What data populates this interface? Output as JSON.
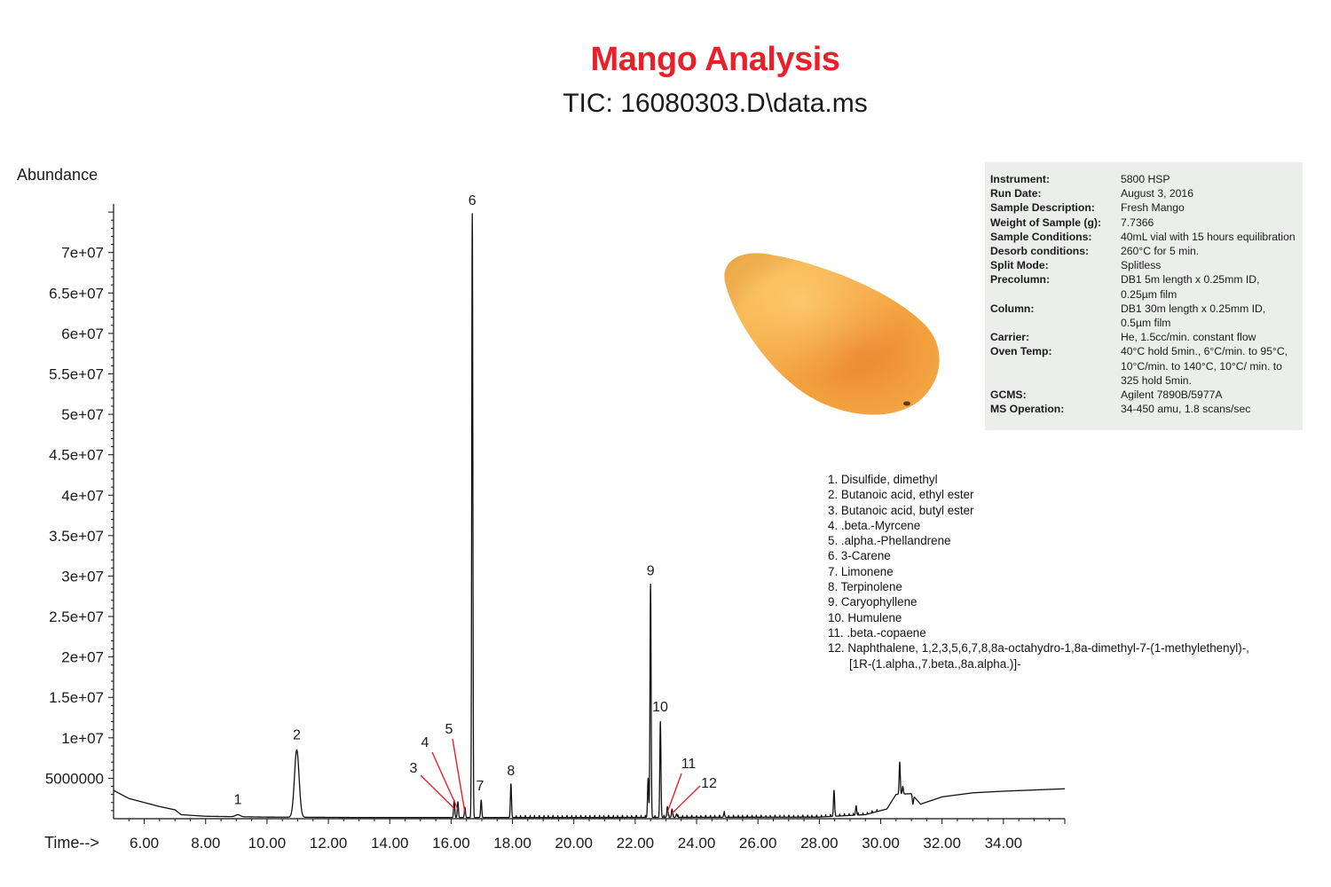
{
  "header": {
    "title": "Mango Analysis",
    "subtitle": "TIC: 16080303.D\\data.ms"
  },
  "colors": {
    "title": "#e8202a",
    "trace": "#111111",
    "pointer_lines": "#e8202a",
    "info_box_bg": "#eceeec",
    "mango_body": "#f2a93a",
    "mango_blush": "#ea8a2c"
  },
  "chart_data": {
    "type": "line",
    "title": "TIC: 16080303.D\\data.ms",
    "xlabel": "Time-->",
    "ylabel": "Abundance",
    "xlim": [
      5.0,
      36.0
    ],
    "ylim": [
      0,
      76000000
    ],
    "grid": false,
    "x_ticks": [
      6,
      8,
      10,
      12,
      14,
      16,
      18,
      20,
      22,
      24,
      26,
      28,
      30,
      32,
      34
    ],
    "x_tick_labels": [
      "6.00",
      "8.00",
      "10.00",
      "12.00",
      "14.00",
      "16.00",
      "18.00",
      "20.00",
      "22.00",
      "24.00",
      "26.00",
      "28.00",
      "30.00",
      "32.00",
      "34.00"
    ],
    "y_ticks": [
      5000000,
      10000000,
      15000000,
      20000000,
      25000000,
      30000000,
      35000000,
      40000000,
      45000000,
      50000000,
      55000000,
      60000000,
      65000000,
      70000000
    ],
    "y_tick_labels": [
      "5000000",
      "1e+07",
      "1.5e+07",
      "2e+07",
      "2.5e+07",
      "3e+07",
      "3.5e+07",
      "4e+07",
      "4.5e+07",
      "5e+07",
      "5.5e+07",
      "6e+07",
      "6.5e+07",
      "7e+07"
    ],
    "peaks": [
      {
        "label": "1",
        "rt": 9.05,
        "abundance": 500000
      },
      {
        "label": "2",
        "rt": 10.97,
        "abundance": 8500000
      },
      {
        "label": "3",
        "rt": 16.1,
        "abundance": 2300000
      },
      {
        "label": "4",
        "rt": 16.22,
        "abundance": 2100000
      },
      {
        "label": "5",
        "rt": 16.45,
        "abundance": 1400000
      },
      {
        "label": "6",
        "rt": 16.69,
        "abundance": 74800000
      },
      {
        "label": "7",
        "rt": 16.98,
        "abundance": 2300000
      },
      {
        "label": "8",
        "rt": 17.95,
        "abundance": 4300000
      },
      {
        "label": "9",
        "rt": 22.5,
        "abundance": 29000000
      },
      {
        "label": "10",
        "rt": 22.82,
        "abundance": 12000000
      },
      {
        "label": "11",
        "rt": 23.05,
        "abundance": 1500000
      },
      {
        "label": "12",
        "rt": 23.2,
        "abundance": 1200000
      }
    ],
    "minor_peaks": [
      {
        "rt": 22.42,
        "abundance": 5000000
      },
      {
        "rt": 23.35,
        "abundance": 600000
      },
      {
        "rt": 24.9,
        "abundance": 700000
      },
      {
        "rt": 28.48,
        "abundance": 3500000
      },
      {
        "rt": 29.2,
        "abundance": 1600000
      },
      {
        "rt": 30.62,
        "abundance": 7000000
      },
      {
        "rt": 30.72,
        "abundance": 4000000
      },
      {
        "rt": 31.05,
        "abundance": 1800000
      }
    ],
    "baseline": [
      [
        5.0,
        3500000
      ],
      [
        5.5,
        2500000
      ],
      [
        6.5,
        1500000
      ],
      [
        7.0,
        1100000
      ],
      [
        7.2,
        500000
      ],
      [
        8.0,
        300000
      ],
      [
        10.0,
        200000
      ],
      [
        13.0,
        150000
      ],
      [
        20.0,
        150000
      ],
      [
        28.0,
        200000
      ],
      [
        29.5,
        500000
      ],
      [
        30.2,
        1200000
      ],
      [
        30.5,
        3000000
      ],
      [
        31.0,
        3100000
      ],
      [
        31.3,
        1800000
      ],
      [
        32.0,
        2700000
      ],
      [
        33.0,
        3200000
      ],
      [
        34.0,
        3400000
      ],
      [
        36.0,
        3700000
      ]
    ]
  },
  "info": {
    "rows": [
      {
        "key": "Instrument:",
        "value": "5800 HSP"
      },
      {
        "key": "Run Date:",
        "value": "August 3, 2016"
      },
      {
        "key": "Sample Description:",
        "value": "Fresh Mango"
      },
      {
        "key": "Weight of Sample (g):",
        "value": "7.7366"
      },
      {
        "key": "Sample Conditions:",
        "value": "40mL vial with 15 hours equilibration"
      },
      {
        "key": "Desorb conditions:",
        "value": "260°C for 5 min."
      },
      {
        "key": "Split Mode:",
        "value": "Splitless"
      },
      {
        "key": "Precolumn:",
        "value": "DB1 5m length x 0.25mm ID, 0.25µm film"
      },
      {
        "key": "Column:",
        "value": "DB1 30m length x 0.25mm ID, 0.5µm film"
      },
      {
        "key": "Carrier:",
        "value": "He, 1.5cc/min. constant flow"
      },
      {
        "key": "Oven Temp:",
        "value": "40°C hold 5min., 6°C/min. to 95°C, 10°C/min. to 140°C, 10°C/ min. to 325 hold 5min."
      },
      {
        "key": "GCMS:",
        "value": "Agilent 7890B/5977A"
      },
      {
        "key": "MS Operation:",
        "value": "34-450 amu, 1.8 scans/sec"
      }
    ]
  },
  "legend": {
    "items": [
      "1. Disulfide, dimethyl",
      "2. Butanoic acid, ethyl ester",
      "3. Butanoic acid, butyl ester",
      "4. .beta.-Myrcene",
      "5. .alpha.-Phellandrene",
      "6. 3-Carene",
      "7. Limonene",
      "8. Terpinolene",
      "9. Caryophyllene",
      "10. Humulene",
      "11. .beta.-copaene",
      "12. Naphthalene, 1,2,3,5,6,7,8,8a-octahydro-1,8a-dimethyl-7-(1-methylethenyl)-,"
    ],
    "continuation": "[1R-(1.alpha.,7.beta.,8a.alpha.)]-"
  }
}
